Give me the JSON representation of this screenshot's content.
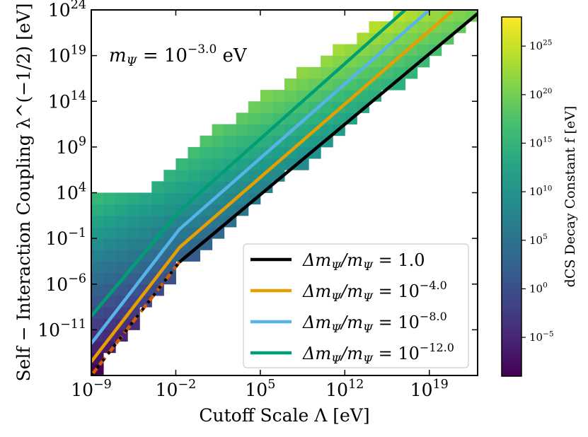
{
  "chart_data": {
    "type": "heatmap",
    "title": "",
    "xlabel": "Cutoff Scale Λ [eV]",
    "ylabel": "Self − Interaction Coupling λ^(−1/2) [eV]",
    "xscale": "log10",
    "yscale": "log10",
    "xlim_log10": [
      -9,
      23
    ],
    "ylim_log10": [
      -16,
      24
    ],
    "x_ticks": [
      {
        "base": "10",
        "exp": "−9"
      },
      {
        "base": "10",
        "exp": "−2"
      },
      {
        "base": "10",
        "exp": "5"
      },
      {
        "base": "10",
        "exp": "12"
      },
      {
        "base": "10",
        "exp": "19"
      }
    ],
    "x_tick_log10": [
      -9,
      -2,
      5,
      12,
      19
    ],
    "y_ticks": [
      {
        "base": "10",
        "exp": "24"
      },
      {
        "base": "10",
        "exp": "19"
      },
      {
        "base": "10",
        "exp": "14"
      },
      {
        "base": "10",
        "exp": "9"
      },
      {
        "base": "10",
        "exp": "4"
      },
      {
        "base": "10",
        "exp": "−1"
      },
      {
        "base": "10",
        "exp": "−6"
      },
      {
        "base": "10",
        "exp": "−11"
      }
    ],
    "y_tick_log10": [
      24,
      19,
      14,
      9,
      4,
      -1,
      -6,
      -11
    ],
    "annotation": {
      "pre": "m",
      "sub": "Ψ",
      "mid": " = 10",
      "exp": "−3.0",
      "post": " eV"
    },
    "colorbar": {
      "label": "dCS Decay Constant f [eV]",
      "scale": "log10",
      "range_log10": [
        -9,
        28
      ],
      "ticks": [
        {
          "base": "10",
          "exp": "25"
        },
        {
          "base": "10",
          "exp": "20"
        },
        {
          "base": "10",
          "exp": "15"
        },
        {
          "base": "10",
          "exp": "10"
        },
        {
          "base": "10",
          "exp": "5"
        },
        {
          "base": "10",
          "exp": "0"
        },
        {
          "base": "10",
          "exp": "−5"
        }
      ],
      "tick_log10": [
        25,
        20,
        15,
        10,
        5,
        0,
        -5
      ]
    },
    "heatmap_grid": {
      "x_bins_log10": [
        -9,
        23
      ],
      "y_bins_log10": [
        -16,
        24
      ],
      "n_x": 32,
      "n_y": 32,
      "value_rule": "log10 f ≈ 1.3·log10 λ^(−1/2) − 0.7·log10 Λ + 5.3",
      "lower_boundary_segments": [
        {
          "x": [
            -9,
            -1.7
          ],
          "y": [
            -16,
            -3.6
          ]
        },
        {
          "x": [
            -1.7,
            23
          ],
          "y": [
            -3.6,
            23.6
          ]
        }
      ],
      "upper_boundary_segments": [
        {
          "x": [
            -9,
            -5
          ],
          "y": [
            3.3,
            3.3
          ]
        },
        {
          "x": [
            -5,
            0
          ],
          "y": [
            3.3,
            9.3
          ]
        },
        {
          "x": [
            0,
            17
          ],
          "y": [
            9.3,
            24
          ]
        }
      ]
    },
    "series": [
      {
        "name": "Δm_Ψ/m_Ψ = 1.0",
        "color": "#000000",
        "dashed": false,
        "x": [
          -1.7,
          23
        ],
        "y": [
          -3.6,
          23.6
        ]
      },
      {
        "name": "Δm_Ψ/m_Ψ = 10^−4.0",
        "color": "#E69F00",
        "dashed": false,
        "x": [
          -9,
          -1.7,
          21
        ],
        "y": [
          -14.5,
          -2.0,
          24
        ]
      },
      {
        "name": "Δm_Ψ/m_Ψ = 10^−8.0",
        "color": "#56B4E9",
        "dashed": false,
        "x": [
          -9,
          -1.7,
          19
        ],
        "y": [
          -12.5,
          0.0,
          24
        ]
      },
      {
        "name": "Δm_Ψ/m_Ψ = 10^−12.0",
        "color": "#009E73",
        "dashed": false,
        "x": [
          -9,
          -1.7,
          17
        ],
        "y": [
          -9.5,
          2.0,
          24
        ]
      },
      {
        "name": "boundary (dashed)",
        "color": "#D55E00",
        "dashed": true,
        "x": [
          -9,
          -1.7
        ],
        "y": [
          -16,
          -3.6
        ]
      },
      {
        "name": "boundary (dotted)",
        "color": "#000000",
        "dashed": true,
        "x": [
          -9,
          -1.7
        ],
        "y": [
          -16,
          -3.6
        ]
      }
    ],
    "legend": {
      "position": "lower-right",
      "entries": [
        {
          "pre": "Δm",
          "sub1": "Ψ",
          "mid": "/m",
          "sub2": "Ψ",
          "post": " = 1.0",
          "exp": "",
          "color": "#000000"
        },
        {
          "pre": "Δm",
          "sub1": "Ψ",
          "mid": "/m",
          "sub2": "Ψ",
          "post": " = 10",
          "exp": "−4.0",
          "color": "#E69F00"
        },
        {
          "pre": "Δm",
          "sub1": "Ψ",
          "mid": "/m",
          "sub2": "Ψ",
          "post": " = 10",
          "exp": "−8.0",
          "color": "#56B4E9"
        },
        {
          "pre": "Δm",
          "sub1": "Ψ",
          "mid": "/m",
          "sub2": "Ψ",
          "post": " = 10",
          "exp": "−12.0",
          "color": "#009E73"
        }
      ]
    }
  }
}
